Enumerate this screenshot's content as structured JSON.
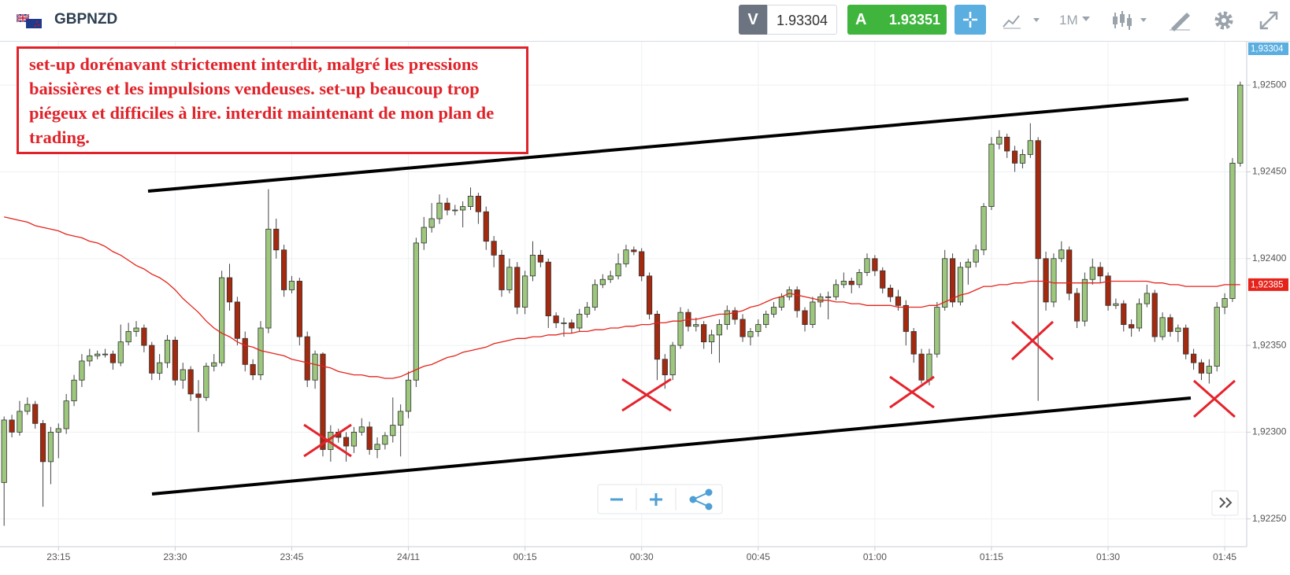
{
  "header": {
    "symbol": "GBPNZD",
    "sell_label": "V",
    "sell_price": 1.93304,
    "buy_label": "A",
    "buy_price": 1.93351,
    "timeframe": "1M"
  },
  "annotation": "set-up dorénavant strictement interdit, malgré les pressions baissières et les impulsions vendeuses. set-up beaucoup trop piégeux et difficiles à lire. interdit maintenant de mon plan de trading.",
  "chart_data": {
    "type": "candlestick",
    "up_color": "#9cc77c",
    "down_color": "#a3290f",
    "grid": true,
    "ylim": [
      1.92234,
      1.92525
    ],
    "yticks": [
      {
        "value": 1.9225,
        "label": "1,92250"
      },
      {
        "value": 1.923,
        "label": "1,92300"
      },
      {
        "value": 1.9235,
        "label": "1,92350"
      },
      {
        "value": 1.924,
        "label": "1,92400"
      },
      {
        "value": 1.9245,
        "label": "1,92450"
      },
      {
        "value": 1.925,
        "label": "1,92500"
      }
    ],
    "price_tags": [
      {
        "value": 1.93304,
        "label": "1,93304",
        "color": "#5aaee0"
      },
      {
        "value": 1.92385,
        "label": "1,92385",
        "color": "#e5231b"
      }
    ],
    "categories": [
      null,
      null,
      null,
      null,
      null,
      null,
      null,
      "23:15",
      null,
      null,
      null,
      null,
      null,
      null,
      null,
      null,
      null,
      null,
      null,
      null,
      null,
      null,
      "23:30",
      null,
      null,
      null,
      null,
      null,
      null,
      null,
      null,
      null,
      null,
      null,
      null,
      null,
      null,
      "23:45",
      null,
      null,
      null,
      null,
      null,
      null,
      null,
      null,
      null,
      null,
      null,
      null,
      null,
      null,
      "24/11",
      null,
      null,
      null,
      null,
      null,
      null,
      null,
      null,
      null,
      null,
      null,
      null,
      null,
      null,
      "00:15",
      null,
      null,
      null,
      null,
      null,
      null,
      null,
      null,
      null,
      null,
      null,
      null,
      null,
      null,
      "00:30",
      null,
      null,
      null,
      null,
      null,
      null,
      null,
      null,
      null,
      null,
      null,
      null,
      null,
      null,
      "00:45",
      null,
      null,
      null,
      null,
      null,
      null,
      null,
      null,
      null,
      null,
      null,
      null,
      null,
      null,
      "01:00",
      null,
      null,
      null,
      null,
      null,
      null,
      null,
      null,
      null,
      null,
      null,
      null,
      null,
      null,
      "01:15",
      null,
      null,
      null,
      null,
      null,
      null,
      null,
      null,
      null,
      null,
      null,
      null,
      null,
      null,
      "01:30",
      null,
      null,
      null,
      null,
      null,
      null,
      null,
      null,
      null,
      null,
      null,
      null,
      null,
      null,
      "01:45",
      null,
      null
    ],
    "ohlc": [
      [
        1.92271,
        1.92309,
        1.92246,
        1.92307
      ],
      [
        1.92307,
        1.9231,
        1.92297,
        1.923
      ],
      [
        1.923,
        1.92318,
        1.92298,
        1.92312
      ],
      [
        1.92312,
        1.9232,
        1.9231,
        1.92316
      ],
      [
        1.92316,
        1.92318,
        1.92302,
        1.92305
      ],
      [
        1.92305,
        1.92307,
        1.92257,
        1.92283
      ],
      [
        1.92283,
        1.92303,
        1.9227,
        1.923
      ],
      [
        1.923,
        1.92305,
        1.92285,
        1.92302
      ],
      [
        1.92302,
        1.92322,
        1.92299,
        1.92318
      ],
      [
        1.92318,
        1.92333,
        1.92315,
        1.9233
      ],
      [
        1.9233,
        1.92345,
        1.92326,
        1.92341
      ],
      [
        1.92341,
        1.92348,
        1.92338,
        1.92344
      ],
      [
        1.92344,
        1.92347,
        1.92342,
        1.92345
      ],
      [
        1.92345,
        1.92348,
        1.92343,
        1.92345
      ],
      [
        1.92345,
        1.92347,
        1.92336,
        1.9234
      ],
      [
        1.9234,
        1.92362,
        1.92338,
        1.92352
      ],
      [
        1.92352,
        1.92363,
        1.9235,
        1.92358
      ],
      [
        1.92358,
        1.92364,
        1.92355,
        1.9236
      ],
      [
        1.9236,
        1.92362,
        1.92346,
        1.9235
      ],
      [
        1.9235,
        1.92352,
        1.9233,
        1.92334
      ],
      [
        1.92334,
        1.92345,
        1.9233,
        1.9234
      ],
      [
        1.9234,
        1.92356,
        1.92337,
        1.92353
      ],
      [
        1.92353,
        1.92355,
        1.92327,
        1.9233
      ],
      [
        1.9233,
        1.9234,
        1.92325,
        1.92336
      ],
      [
        1.92336,
        1.92338,
        1.92318,
        1.92322
      ],
      [
        1.92322,
        1.9233,
        1.923,
        1.9232
      ],
      [
        1.9232,
        1.9234,
        1.92318,
        1.92338
      ],
      [
        1.92338,
        1.92345,
        1.92335,
        1.9234
      ],
      [
        1.9234,
        1.92393,
        1.92338,
        1.92389
      ],
      [
        1.92389,
        1.92397,
        1.9237,
        1.92375
      ],
      [
        1.92375,
        1.92378,
        1.9235,
        1.92354
      ],
      [
        1.92354,
        1.92358,
        1.92335,
        1.92339
      ],
      [
        1.92339,
        1.92342,
        1.9233,
        1.92333
      ],
      [
        1.92333,
        1.92364,
        1.9233,
        1.9236
      ],
      [
        1.9236,
        1.9244,
        1.92357,
        1.92417
      ],
      [
        1.92417,
        1.92423,
        1.924,
        1.92405
      ],
      [
        1.92405,
        1.92408,
        1.92378,
        1.92382
      ],
      [
        1.92382,
        1.9239,
        1.9238,
        1.92387
      ],
      [
        1.92387,
        1.92389,
        1.9235,
        1.92355
      ],
      [
        1.92355,
        1.92358,
        1.92326,
        1.9233
      ],
      [
        1.9233,
        1.92347,
        1.92325,
        1.92345
      ],
      [
        1.92345,
        1.92346,
        1.92286,
        1.9229
      ],
      [
        1.9229,
        1.92304,
        1.92283,
        1.923
      ],
      [
        1.923,
        1.92302,
        1.92294,
        1.92297
      ],
      [
        1.92297,
        1.923,
        1.92283,
        1.92292
      ],
      [
        1.92292,
        1.92303,
        1.92288,
        1.923
      ],
      [
        1.923,
        1.92308,
        1.92298,
        1.92303
      ],
      [
        1.92303,
        1.92306,
        1.92287,
        1.9229
      ],
      [
        1.9229,
        1.92297,
        1.92285,
        1.92293
      ],
      [
        1.92293,
        1.923,
        1.9229,
        1.92298
      ],
      [
        1.92298,
        1.9232,
        1.92294,
        1.92304
      ],
      [
        1.92304,
        1.92316,
        1.92286,
        1.92312
      ],
      [
        1.92312,
        1.92335,
        1.92308,
        1.9233
      ],
      [
        1.9233,
        1.92412,
        1.92326,
        1.92409
      ],
      [
        1.92409,
        1.92424,
        1.92405,
        1.92418
      ],
      [
        1.92418,
        1.92432,
        1.92415,
        1.92423
      ],
      [
        1.92423,
        1.92437,
        1.9242,
        1.92432
      ],
      [
        1.92432,
        1.92435,
        1.92425,
        1.92428
      ],
      [
        1.92428,
        1.92431,
        1.92425,
        1.92428
      ],
      [
        1.92428,
        1.92433,
        1.92418,
        1.9243
      ],
      [
        1.9243,
        1.92441,
        1.92428,
        1.92436
      ],
      [
        1.92436,
        1.92438,
        1.9242,
        1.92427
      ],
      [
        1.92427,
        1.9243,
        1.92405,
        1.9241
      ],
      [
        1.9241,
        1.92413,
        1.92395,
        1.92402
      ],
      [
        1.92402,
        1.92405,
        1.92378,
        1.92382
      ],
      [
        1.92382,
        1.924,
        1.9238,
        1.92395
      ],
      [
        1.92395,
        1.92398,
        1.92368,
        1.92372
      ],
      [
        1.92372,
        1.92393,
        1.92368,
        1.9239
      ],
      [
        1.9239,
        1.9241,
        1.92387,
        1.92402
      ],
      [
        1.92402,
        1.92405,
        1.92395,
        1.92398
      ],
      [
        1.92398,
        1.924,
        1.9236,
        1.92367
      ],
      [
        1.92367,
        1.92369,
        1.9236,
        1.92363
      ],
      [
        1.92363,
        1.92366,
        1.92355,
        1.92363
      ],
      [
        1.92363,
        1.92365,
        1.92357,
        1.9236
      ],
      [
        1.9236,
        1.92371,
        1.92358,
        1.92368
      ],
      [
        1.92368,
        1.92375,
        1.92366,
        1.92372
      ],
      [
        1.92372,
        1.92388,
        1.9237,
        1.92385
      ],
      [
        1.92385,
        1.92391,
        1.92383,
        1.92388
      ],
      [
        1.92388,
        1.92393,
        1.92386,
        1.9239
      ],
      [
        1.9239,
        1.92403,
        1.92388,
        1.92397
      ],
      [
        1.92397,
        1.92408,
        1.92395,
        1.92405
      ],
      [
        1.92405,
        1.92407,
        1.92402,
        1.92404
      ],
      [
        1.92404,
        1.92406,
        1.92387,
        1.9239
      ],
      [
        1.9239,
        1.92392,
        1.92365,
        1.92368
      ],
      [
        1.92368,
        1.9237,
        1.9233,
        1.92342
      ],
      [
        1.92342,
        1.92345,
        1.92325,
        1.92333
      ],
      [
        1.92333,
        1.92352,
        1.9233,
        1.9235
      ],
      [
        1.9235,
        1.92372,
        1.92348,
        1.92369
      ],
      [
        1.92369,
        1.92371,
        1.92358,
        1.92361
      ],
      [
        1.92361,
        1.92366,
        1.92358,
        1.92362
      ],
      [
        1.92362,
        1.92364,
        1.92348,
        1.92352
      ],
      [
        1.92352,
        1.92359,
        1.92345,
        1.92356
      ],
      [
        1.92356,
        1.92365,
        1.9234,
        1.92362
      ],
      [
        1.92362,
        1.92373,
        1.92359,
        1.9237
      ],
      [
        1.9237,
        1.92372,
        1.92362,
        1.92365
      ],
      [
        1.92365,
        1.92368,
        1.92352,
        1.92355
      ],
      [
        1.92355,
        1.9236,
        1.9235,
        1.92358
      ],
      [
        1.92358,
        1.92365,
        1.92355,
        1.92362
      ],
      [
        1.92362,
        1.9237,
        1.9236,
        1.92368
      ],
      [
        1.92368,
        1.92375,
        1.92366,
        1.92372
      ],
      [
        1.92372,
        1.9238,
        1.9237,
        1.92378
      ],
      [
        1.92378,
        1.92384,
        1.92376,
        1.92382
      ],
      [
        1.92382,
        1.92384,
        1.92366,
        1.9237
      ],
      [
        1.9237,
        1.92372,
        1.92358,
        1.92362
      ],
      [
        1.92362,
        1.92378,
        1.9236,
        1.92375
      ],
      [
        1.92375,
        1.9238,
        1.92372,
        1.92378
      ],
      [
        1.92378,
        1.92381,
        1.92365,
        1.92378
      ],
      [
        1.92378,
        1.92388,
        1.92376,
        1.92385
      ],
      [
        1.92385,
        1.92392,
        1.92383,
        1.92387
      ],
      [
        1.92387,
        1.92389,
        1.9238,
        1.92385
      ],
      [
        1.92385,
        1.92394,
        1.92383,
        1.92392
      ],
      [
        1.92392,
        1.92403,
        1.9239,
        1.924
      ],
      [
        1.924,
        1.92402,
        1.9239,
        1.92393
      ],
      [
        1.92393,
        1.92395,
        1.9238,
        1.92383
      ],
      [
        1.92383,
        1.92385,
        1.92375,
        1.92378
      ],
      [
        1.92378,
        1.92382,
        1.9237,
        1.92373
      ],
      [
        1.92373,
        1.92376,
        1.9235,
        1.92358
      ],
      [
        1.92358,
        1.9236,
        1.9234,
        1.92345
      ],
      [
        1.92345,
        1.92348,
        1.92328,
        1.9233
      ],
      [
        1.9233,
        1.92348,
        1.92327,
        1.92345
      ],
      [
        1.92345,
        1.92375,
        1.92343,
        1.92372
      ],
      [
        1.92372,
        1.92405,
        1.9237,
        1.924
      ],
      [
        1.924,
        1.92403,
        1.92372,
        1.92375
      ],
      [
        1.92375,
        1.92398,
        1.92373,
        1.92395
      ],
      [
        1.92395,
        1.924,
        1.92385,
        1.92398
      ],
      [
        1.92398,
        1.92408,
        1.92395,
        1.92405
      ],
      [
        1.92405,
        1.92432,
        1.92402,
        1.9243
      ],
      [
        1.9243,
        1.9247,
        1.92428,
        1.92466
      ],
      [
        1.92466,
        1.92474,
        1.92463,
        1.9247
      ],
      [
        1.9247,
        1.92472,
        1.92458,
        1.92462
      ],
      [
        1.92462,
        1.92465,
        1.9245,
        1.92455
      ],
      [
        1.92455,
        1.92463,
        1.92452,
        1.9246
      ],
      [
        1.9246,
        1.92478,
        1.92458,
        1.92468
      ],
      [
        1.92468,
        1.9247,
        1.92318,
        1.924
      ],
      [
        1.924,
        1.92404,
        1.9237,
        1.92375
      ],
      [
        1.92375,
        1.92403,
        1.92372,
        1.924
      ],
      [
        1.924,
        1.9241,
        1.92398,
        1.92405
      ],
      [
        1.92405,
        1.92407,
        1.92376,
        1.9238
      ],
      [
        1.9238,
        1.92383,
        1.9236,
        1.92364
      ],
      [
        1.92364,
        1.92392,
        1.92361,
        1.92388
      ],
      [
        1.92388,
        1.924,
        1.92385,
        1.92395
      ],
      [
        1.92395,
        1.92398,
        1.92386,
        1.9239
      ],
      [
        1.9239,
        1.92392,
        1.9237,
        1.92373
      ],
      [
        1.92373,
        1.92377,
        1.92371,
        1.92374
      ],
      [
        1.92374,
        1.92376,
        1.92358,
        1.92362
      ],
      [
        1.92362,
        1.92365,
        1.92355,
        1.9236
      ],
      [
        1.9236,
        1.92377,
        1.92358,
        1.92374
      ],
      [
        1.92374,
        1.92385,
        1.92372,
        1.9238
      ],
      [
        1.9238,
        1.92382,
        1.92352,
        1.92355
      ],
      [
        1.92355,
        1.92369,
        1.92353,
        1.92366
      ],
      [
        1.92366,
        1.92368,
        1.92355,
        1.92358
      ],
      [
        1.92358,
        1.92362,
        1.92352,
        1.9236
      ],
      [
        1.9236,
        1.92362,
        1.92342,
        1.92345
      ],
      [
        1.92345,
        1.92348,
        1.92336,
        1.9234
      ],
      [
        1.9234,
        1.92342,
        1.9233,
        1.92334
      ],
      [
        1.92334,
        1.92342,
        1.92328,
        1.92338
      ],
      [
        1.92338,
        1.92375,
        1.92335,
        1.92372
      ],
      [
        1.92372,
        1.9238,
        1.92368,
        1.92377
      ],
      [
        1.92377,
        1.92458,
        1.92375,
        1.92455
      ],
      [
        1.92455,
        1.92502,
        1.92453,
        1.925
      ]
    ],
    "moving_average": {
      "color": "#e5231b",
      "values": [
        1.92424,
        1.92423,
        1.92422,
        1.92421,
        1.92419,
        1.92418,
        1.92417,
        1.92416,
        1.92414,
        1.92413,
        1.92412,
        1.9241,
        1.92409,
        1.92407,
        1.92404,
        1.92402,
        1.92399,
        1.92396,
        1.92394,
        1.92391,
        1.92389,
        1.92386,
        1.92382,
        1.92377,
        1.92373,
        1.92369,
        1.92364,
        1.9236,
        1.92357,
        1.92355,
        1.92352,
        1.9235,
        1.92349,
        1.92347,
        1.92346,
        1.92345,
        1.92344,
        1.92342,
        1.92341,
        1.9234,
        1.92339,
        1.92338,
        1.92337,
        1.92335,
        1.92334,
        1.92333,
        1.92333,
        1.92332,
        1.92332,
        1.92331,
        1.92331,
        1.92332,
        1.92334,
        1.92336,
        1.92338,
        1.92339,
        1.92341,
        1.92343,
        1.92344,
        1.92346,
        1.92347,
        1.92348,
        1.92349,
        1.92351,
        1.92352,
        1.92353,
        1.92354,
        1.92354,
        1.92355,
        1.92355,
        1.92356,
        1.92356,
        1.92357,
        1.92357,
        1.92358,
        1.92358,
        1.92359,
        1.92359,
        1.9236,
        1.9236,
        1.92361,
        1.92361,
        1.92362,
        1.92362,
        1.92363,
        1.92363,
        1.92364,
        1.92364,
        1.92365,
        1.92365,
        1.92366,
        1.92367,
        1.92368,
        1.92368,
        1.92369,
        1.9237,
        1.92372,
        1.92373,
        1.92375,
        1.92377,
        1.92378,
        1.9238,
        1.92379,
        1.92378,
        1.92377,
        1.92376,
        1.92376,
        1.92375,
        1.92375,
        1.92374,
        1.92374,
        1.92373,
        1.92373,
        1.92373,
        1.92373,
        1.92372,
        1.92372,
        1.92372,
        1.92372,
        1.92373,
        1.92373,
        1.92375,
        1.92377,
        1.92379,
        1.9238,
        1.92382,
        1.92384,
        1.92384,
        1.92385,
        1.92385,
        1.92386,
        1.92386,
        1.92387,
        1.92387,
        1.92387,
        1.92386,
        1.92386,
        1.92386,
        1.92386,
        1.92386,
        1.92386,
        1.92386,
        1.92387,
        1.92387,
        1.92387,
        1.92387,
        1.92387,
        1.92387,
        1.92386,
        1.92386,
        1.92385,
        1.92385,
        1.92384,
        1.92384,
        1.92384,
        1.92384,
        1.92384,
        1.92385,
        1.92385,
        1.92385
      ]
    }
  }
}
